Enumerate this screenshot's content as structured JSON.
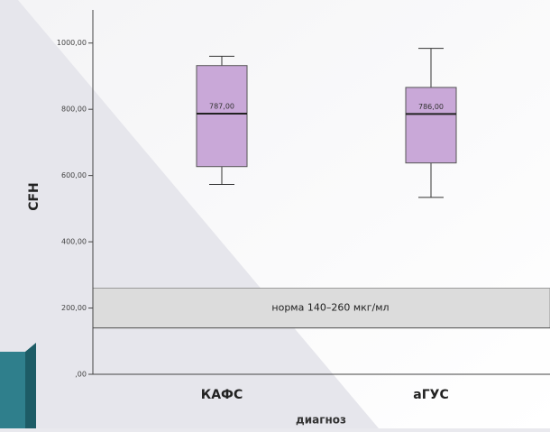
{
  "chart_data": {
    "type": "box",
    "y_label": "CFH",
    "x_label": "диагноз",
    "categories": [
      "КАФС",
      "аГУС"
    ],
    "boxes": [
      {
        "whislo": 573,
        "q1": 627,
        "med": 787,
        "q3": 932,
        "whishi": 960
      },
      {
        "whislo": 534,
        "q1": 638,
        "med": 786,
        "q3": 866,
        "whishi": 984
      }
    ],
    "value_labels": [
      "787,00",
      "786,00"
    ],
    "color": "#c9a8d8",
    "ylim": [
      0,
      1100
    ],
    "yticks": [
      {
        "value": 0,
        "label": ",00"
      },
      {
        "value": 200,
        "label": "200,00"
      },
      {
        "value": 400,
        "label": "400,00"
      },
      {
        "value": 600,
        "label": "600,00"
      },
      {
        "value": 800,
        "label": "800,00"
      },
      {
        "value": 1000,
        "label": "1000,00"
      }
    ],
    "norm_band": [
      140,
      260
    ],
    "norm_label": "норма 140–260 мкг/мл"
  }
}
